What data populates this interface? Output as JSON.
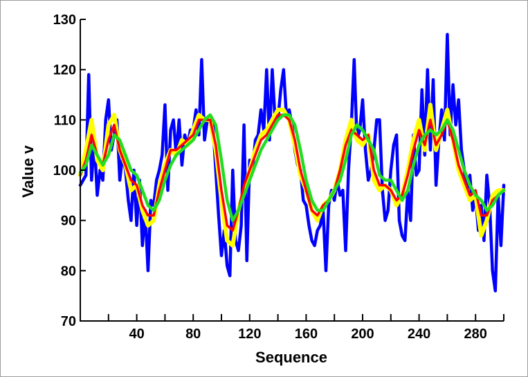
{
  "chart_data": {
    "type": "line",
    "title": "",
    "xlabel": "Sequence",
    "ylabel": "Value v",
    "xlim": [
      0,
      300
    ],
    "ylim": [
      70,
      130
    ],
    "x_ticks": [
      40,
      80,
      120,
      160,
      200,
      240,
      280
    ],
    "x_minor_ticks": [
      20,
      60,
      100,
      140,
      180,
      220,
      260,
      300
    ],
    "y_ticks": [
      70,
      80,
      90,
      100,
      110,
      120,
      130
    ],
    "grid": false,
    "legend": "none",
    "series": [
      {
        "color": "#0000ff",
        "x": [
          0,
          4,
          6,
          8,
          10,
          12,
          14,
          16,
          18,
          20,
          22,
          24,
          26,
          28,
          30,
          32,
          34,
          36,
          38,
          40,
          42,
          44,
          46,
          48,
          50,
          52,
          54,
          56,
          58,
          60,
          62,
          64,
          66,
          68,
          70,
          72,
          74,
          76,
          78,
          80,
          82,
          84,
          86,
          88,
          90,
          92,
          94,
          96,
          98,
          100,
          102,
          104,
          106,
          108,
          110,
          112,
          114,
          116,
          118,
          120,
          122,
          124,
          126,
          128,
          130,
          132,
          134,
          136,
          138,
          140,
          142,
          144,
          146,
          148,
          150,
          152,
          154,
          156,
          158,
          160,
          162,
          164,
          166,
          168,
          170,
          172,
          174,
          176,
          178,
          180,
          182,
          184,
          186,
          188,
          190,
          192,
          194,
          196,
          198,
          200,
          202,
          204,
          206,
          208,
          210,
          212,
          214,
          216,
          218,
          220,
          222,
          224,
          226,
          228,
          230,
          232,
          234,
          236,
          238,
          240,
          242,
          244,
          246,
          248,
          250,
          252,
          254,
          256,
          258,
          260,
          262,
          264,
          266,
          268,
          270,
          272,
          274,
          276,
          278,
          280,
          282,
          284,
          286,
          288,
          290,
          292,
          294,
          296,
          298,
          300
        ],
        "values": [
          97,
          99,
          119,
          98,
          106,
          95,
          100,
          98,
          110,
          114,
          104,
          107,
          110,
          98,
          103,
          100,
          94,
          90,
          100,
          89,
          98,
          85,
          92,
          80,
          94,
          93,
          98,
          100,
          103,
          113,
          96,
          108,
          110,
          103,
          110,
          101,
          107,
          105,
          108,
          108,
          112,
          107,
          122,
          106,
          110,
          110,
          109,
          100,
          91,
          83,
          88,
          81,
          79,
          100,
          86,
          84,
          89,
          109,
          82,
          102,
          100,
          106,
          107,
          112,
          108,
          120,
          106,
          120,
          110,
          110,
          116,
          120,
          111,
          112,
          109,
          104,
          101,
          100,
          94,
          93,
          89,
          86,
          85,
          88,
          89,
          92,
          80,
          93,
          96,
          94,
          98,
          95,
          96,
          84,
          100,
          109,
          122,
          106,
          108,
          114,
          104,
          98,
          100,
          104,
          110,
          110,
          96,
          90,
          92,
          100,
          105,
          107,
          90,
          87,
          86,
          96,
          90,
          107,
          99,
          100,
          116,
          103,
          120,
          104,
          118,
          97,
          106,
          112,
          106,
          127,
          107,
          117,
          109,
          114,
          104,
          100,
          96,
          99,
          92,
          95,
          88,
          93,
          86,
          99,
          93,
          80,
          76,
          95,
          85,
          97
        ]
      },
      {
        "color": "#ffff00",
        "x": [
          0,
          4,
          8,
          12,
          16,
          20,
          24,
          28,
          32,
          36,
          40,
          44,
          48,
          52,
          56,
          60,
          64,
          68,
          72,
          76,
          80,
          84,
          88,
          92,
          96,
          100,
          104,
          108,
          112,
          116,
          120,
          124,
          128,
          132,
          136,
          140,
          144,
          148,
          152,
          156,
          160,
          164,
          168,
          172,
          176,
          180,
          184,
          188,
          192,
          196,
          200,
          204,
          208,
          212,
          216,
          220,
          224,
          228,
          232,
          236,
          240,
          244,
          248,
          252,
          256,
          260,
          264,
          268,
          272,
          276,
          280,
          284,
          288,
          292,
          296,
          300
        ],
        "values": [
          99,
          104,
          110,
          102,
          100,
          109,
          111,
          104,
          101,
          96,
          97,
          92,
          89,
          90,
          97,
          101,
          104,
          103,
          106,
          105,
          108,
          111,
          110,
          110,
          104,
          94,
          86,
          85,
          92,
          96,
          100,
          104,
          107,
          108,
          110,
          112,
          112,
          110,
          105,
          99,
          96,
          92,
          90,
          93,
          94,
          96,
          100,
          106,
          110,
          106,
          105,
          107,
          98,
          96,
          97,
          96,
          93,
          95,
          100,
          106,
          110,
          104,
          113,
          104,
          108,
          112,
          106,
          100,
          97,
          94,
          95,
          87,
          90,
          95,
          96,
          96
        ]
      },
      {
        "color": "#ff0000",
        "x": [
          0,
          4,
          8,
          12,
          16,
          20,
          24,
          28,
          32,
          36,
          40,
          44,
          48,
          52,
          56,
          60,
          64,
          68,
          72,
          76,
          80,
          84,
          88,
          92,
          96,
          100,
          104,
          108,
          112,
          116,
          120,
          124,
          128,
          132,
          136,
          140,
          144,
          148,
          152,
          156,
          160,
          164,
          168,
          172,
          176,
          180,
          184,
          188,
          192,
          196,
          200,
          204,
          208,
          212,
          216,
          220,
          224,
          228,
          232,
          236,
          240,
          244,
          248,
          252,
          256,
          260,
          264,
          268,
          272,
          276,
          280,
          284,
          288,
          292,
          296,
          300
        ],
        "values": [
          99,
          102,
          107,
          103,
          101,
          106,
          109,
          104,
          101,
          98,
          97,
          93,
          91,
          91,
          96,
          100,
          104,
          104,
          105,
          106,
          107,
          110,
          110,
          110,
          105,
          96,
          89,
          88,
          92,
          97,
          100,
          103,
          106,
          107,
          109,
          111,
          111,
          110,
          106,
          100,
          96,
          92,
          91,
          93,
          94,
          96,
          100,
          105,
          108,
          107,
          106,
          107,
          100,
          97,
          97,
          96,
          94,
          95,
          99,
          104,
          108,
          105,
          110,
          105,
          107,
          110,
          106,
          101,
          98,
          95,
          96,
          91,
          91,
          94,
          95,
          96
        ]
      },
      {
        "color": "#22dd22",
        "x": [
          0,
          4,
          8,
          12,
          16,
          20,
          24,
          28,
          32,
          36,
          40,
          44,
          48,
          52,
          56,
          60,
          64,
          68,
          72,
          76,
          80,
          84,
          88,
          92,
          96,
          100,
          104,
          108,
          112,
          116,
          120,
          124,
          128,
          132,
          136,
          140,
          144,
          148,
          152,
          156,
          160,
          164,
          168,
          172,
          176,
          180,
          184,
          188,
          192,
          196,
          200,
          204,
          208,
          212,
          216,
          220,
          224,
          228,
          232,
          236,
          240,
          244,
          248,
          252,
          256,
          260,
          264,
          268,
          272,
          276,
          280,
          284,
          288,
          292,
          296,
          300
        ],
        "values": [
          99.5,
          101,
          105,
          103,
          101,
          103,
          107,
          106,
          103,
          100,
          99,
          96,
          93,
          92,
          94,
          98,
          101,
          103,
          104,
          105,
          106,
          108,
          110,
          111,
          109,
          102,
          94,
          90,
          92,
          95,
          98,
          101,
          104,
          106,
          108,
          110,
          111,
          111,
          109,
          104,
          98,
          94,
          92,
          92,
          94,
          96,
          98,
          102,
          107,
          109,
          108,
          106,
          104,
          99,
          98,
          98,
          96,
          94,
          96,
          101,
          105,
          107,
          108,
          107,
          108,
          110,
          108,
          104,
          100,
          97,
          95,
          94,
          92,
          93,
          95,
          96
        ]
      }
    ]
  }
}
